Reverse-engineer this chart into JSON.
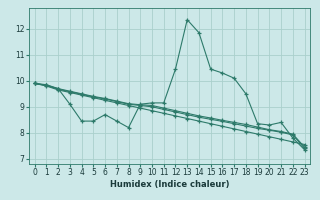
{
  "xlabel": "Humidex (Indice chaleur)",
  "ylabel": "",
  "bg_color": "#cce8e8",
  "grid_color": "#aad0cc",
  "line_color": "#2d7a6a",
  "xlim": [
    -0.5,
    23.5
  ],
  "ylim": [
    6.8,
    12.8
  ],
  "xticks": [
    0,
    1,
    2,
    3,
    4,
    5,
    6,
    7,
    8,
    9,
    10,
    11,
    12,
    13,
    14,
    15,
    16,
    17,
    18,
    19,
    20,
    21,
    22,
    23
  ],
  "yticks": [
    7,
    8,
    9,
    10,
    11,
    12
  ],
  "line1_y": [
    9.9,
    9.85,
    9.7,
    9.1,
    8.45,
    8.45,
    8.7,
    8.45,
    8.2,
    9.1,
    9.15,
    9.15,
    10.45,
    12.35,
    11.85,
    10.45,
    10.3,
    10.1,
    9.5,
    8.35,
    8.3,
    8.4,
    7.8,
    7.35
  ],
  "line2_y": [
    9.9,
    9.8,
    9.65,
    9.55,
    9.45,
    9.35,
    9.25,
    9.15,
    9.05,
    8.95,
    8.85,
    8.75,
    8.65,
    8.55,
    8.45,
    8.35,
    8.25,
    8.15,
    8.05,
    7.95,
    7.85,
    7.75,
    7.65,
    7.55
  ],
  "line3_y": [
    9.9,
    9.82,
    9.68,
    9.58,
    9.48,
    9.38,
    9.3,
    9.2,
    9.1,
    9.05,
    9.0,
    8.9,
    8.8,
    8.7,
    8.6,
    8.52,
    8.44,
    8.35,
    8.26,
    8.17,
    8.1,
    8.02,
    7.92,
    7.4
  ],
  "line4_y": [
    9.9,
    9.83,
    9.7,
    9.6,
    9.5,
    9.4,
    9.32,
    9.22,
    9.12,
    9.08,
    9.05,
    8.95,
    8.85,
    8.75,
    8.65,
    8.57,
    8.48,
    8.4,
    8.32,
    8.22,
    8.12,
    8.05,
    7.95,
    7.45
  ],
  "xlabel_fontsize": 6,
  "tick_fontsize": 5.5
}
